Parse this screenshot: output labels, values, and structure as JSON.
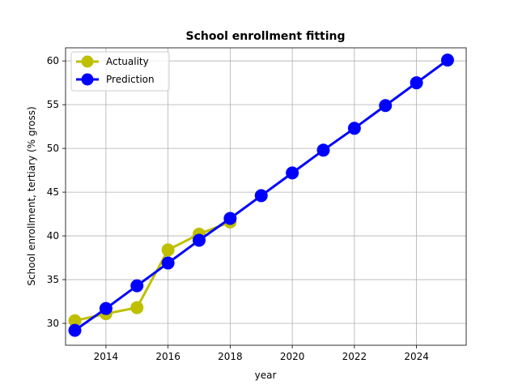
{
  "chart_data": {
    "type": "line",
    "title": "School enrollment fitting",
    "xlabel": "year",
    "ylabel": "School enrollment, tertiary (% gross)",
    "xlim": [
      2012.7,
      2025.6
    ],
    "ylim": [
      27.5,
      61.5
    ],
    "xticks": [
      2014,
      2016,
      2018,
      2020,
      2022,
      2024
    ],
    "yticks": [
      30,
      35,
      40,
      45,
      50,
      55,
      60
    ],
    "grid": true,
    "legend_position": "top-left",
    "series": [
      {
        "name": "Actuality",
        "color": "#bfbf00",
        "x": [
          2013,
          2014,
          2015,
          2016,
          2017,
          2018
        ],
        "y": [
          30.3,
          31.1,
          31.8,
          38.4,
          40.2,
          41.6
        ]
      },
      {
        "name": "Prediction",
        "color": "#0000ff",
        "x": [
          2013,
          2014,
          2015,
          2016,
          2017,
          2018,
          2019,
          2020,
          2021,
          2022,
          2023,
          2024,
          2025
        ],
        "y": [
          29.2,
          31.7,
          34.3,
          36.9,
          39.5,
          42.0,
          44.6,
          47.2,
          49.8,
          52.3,
          54.9,
          57.5,
          60.1
        ]
      }
    ]
  }
}
